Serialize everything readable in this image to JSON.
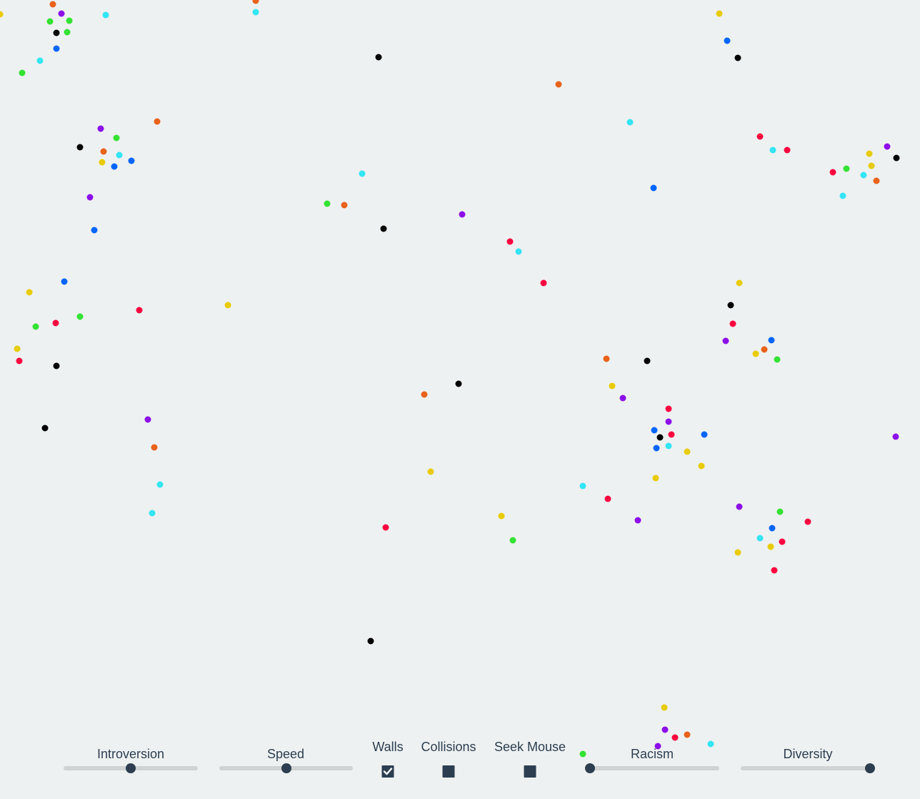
{
  "controls": {
    "introversion": {
      "label": "Introversion",
      "value": 0.5
    },
    "speed": {
      "label": "Speed",
      "value": 0.5
    },
    "walls": {
      "label": "Walls",
      "checked": true
    },
    "collisions": {
      "label": "Collisions",
      "checked": false
    },
    "seek_mouse": {
      "label": "Seek Mouse",
      "checked": false
    },
    "racism": {
      "label": "Racism",
      "value": 0.0
    },
    "diversity": {
      "label": "Diversity",
      "value": 1.0
    }
  },
  "agent_colors": {
    "black": "#000000",
    "red": "#ff0040",
    "orange": "#e8621a",
    "yellow": "#e8cc00",
    "green": "#33e233",
    "cyan": "#33e5f5",
    "blue": "#0066ff",
    "purple": "#8c10e8"
  },
  "ui_colors": {
    "background": "#eef1f1",
    "control_dark": "#2c3e50",
    "track": "#cfd3d4"
  }
}
